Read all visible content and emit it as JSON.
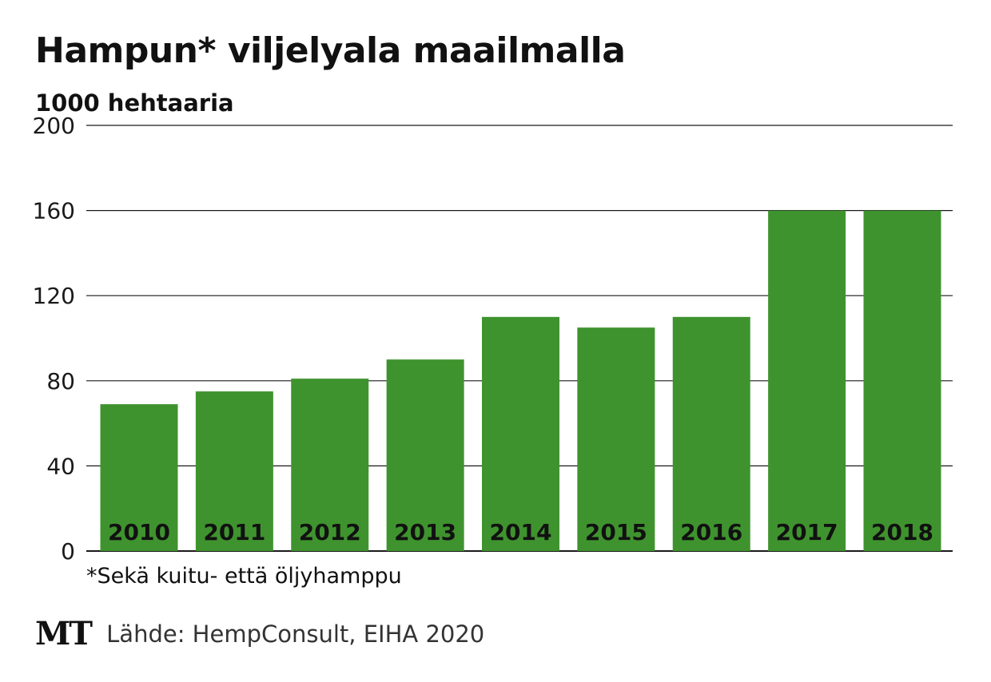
{
  "chart_data": {
    "type": "bar",
    "title": "Hampun* viljelyala maailmalla",
    "subtitle": "1000 hehtaaria",
    "categories": [
      "2010",
      "2011",
      "2012",
      "2013",
      "2014",
      "2015",
      "2016",
      "2017",
      "2018"
    ],
    "values": [
      69,
      75,
      81,
      90,
      110,
      105,
      110,
      160,
      160
    ],
    "ylim": [
      0,
      200
    ],
    "yticks": [
      0,
      40,
      80,
      120,
      160,
      200
    ],
    "grid": true,
    "bar_color": "#3f932e",
    "note": "*Sekä kuitu- että öljyhamppu",
    "source": "Lähde: HempConsult, EIHA 2020"
  },
  "branding": {
    "logo": "MT"
  }
}
